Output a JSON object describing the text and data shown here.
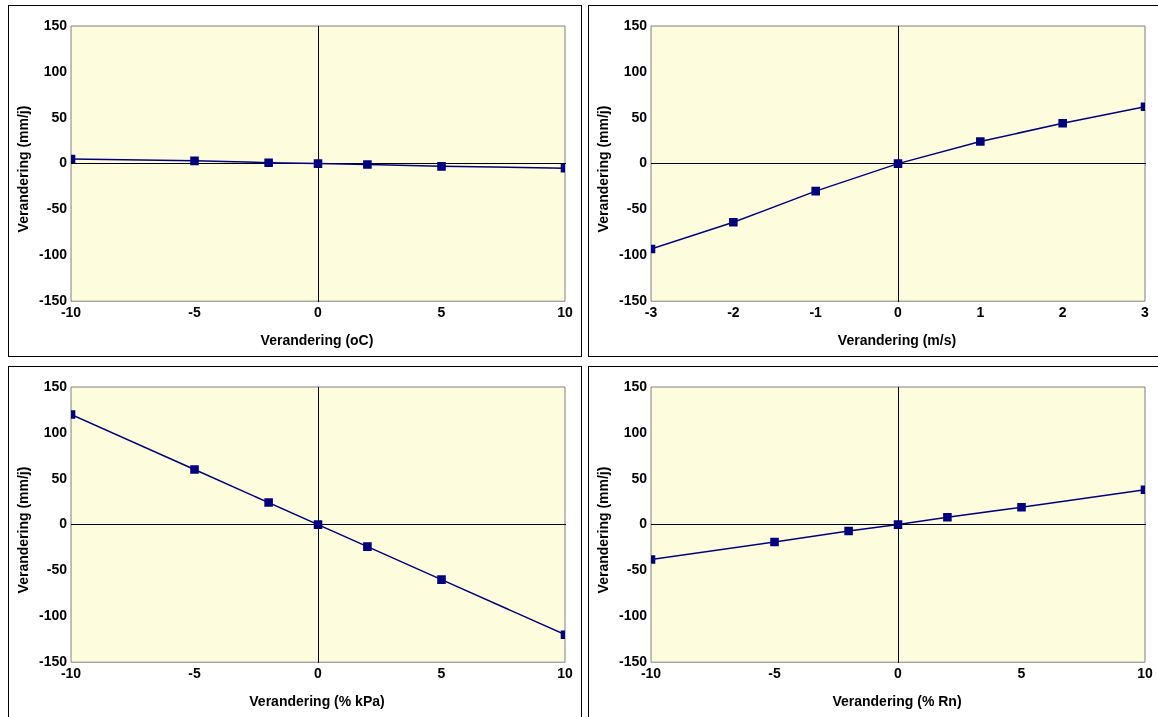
{
  "chart_data": [
    {
      "type": "line",
      "xlabel": "Verandering (oC)",
      "ylabel": "Verandering (mm/j)",
      "marker": "square",
      "legend": false,
      "xlim": [
        -10,
        10
      ],
      "xticks": [
        -10,
        -5,
        0,
        5,
        10
      ],
      "ylim": [
        -150,
        150
      ],
      "yticks": [
        -150,
        -100,
        -50,
        0,
        50,
        100,
        150
      ],
      "series": [
        {
          "color": "#000080",
          "x": [
            -10,
            -5,
            -2,
            0,
            2,
            5,
            10
          ],
          "values": [
            5,
            3,
            1,
            0,
            -1,
            -3,
            -5
          ]
        }
      ]
    },
    {
      "type": "line",
      "xlabel": "Verandering (m/s)",
      "ylabel": "Verandering (mm/j)",
      "marker": "square",
      "legend": false,
      "xlim": [
        -3,
        3
      ],
      "xticks": [
        -3,
        -2,
        -1,
        0,
        1,
        2,
        3
      ],
      "ylim": [
        -150,
        150
      ],
      "yticks": [
        -150,
        -100,
        -50,
        0,
        50,
        100,
        150
      ],
      "series": [
        {
          "color": "#000080",
          "x": [
            -3,
            -2,
            -1,
            0,
            1,
            2,
            3
          ],
          "values": [
            -93,
            -64,
            -30,
            0,
            24,
            44,
            62
          ]
        }
      ]
    },
    {
      "type": "line",
      "xlabel": "Verandering (% kPa)",
      "ylabel": "Verandering (mm/j)",
      "marker": "square",
      "legend": false,
      "xlim": [
        -10,
        10
      ],
      "xticks": [
        -10,
        -5,
        0,
        5,
        10
      ],
      "ylim": [
        -150,
        150
      ],
      "yticks": [
        -150,
        -100,
        -50,
        0,
        50,
        100,
        150
      ],
      "series": [
        {
          "color": "#000080",
          "x": [
            -10,
            -5,
            -2,
            0,
            2,
            5,
            10
          ],
          "values": [
            120,
            60,
            24,
            0,
            -24,
            -60,
            -120
          ]
        }
      ]
    },
    {
      "type": "line",
      "xlabel": "Verandering (% Rn)",
      "ylabel": "Verandering (mm/j)",
      "marker": "square",
      "legend": false,
      "xlim": [
        -10,
        10
      ],
      "xticks": [
        -10,
        -5,
        0,
        5,
        10
      ],
      "ylim": [
        -150,
        150
      ],
      "yticks": [
        -150,
        -100,
        -50,
        0,
        50,
        100,
        150
      ],
      "series": [
        {
          "color": "#000080",
          "x": [
            -10,
            -5,
            -2,
            0,
            2,
            5,
            10
          ],
          "values": [
            -38,
            -19,
            -7,
            0,
            8,
            19,
            38
          ]
        }
      ]
    }
  ]
}
